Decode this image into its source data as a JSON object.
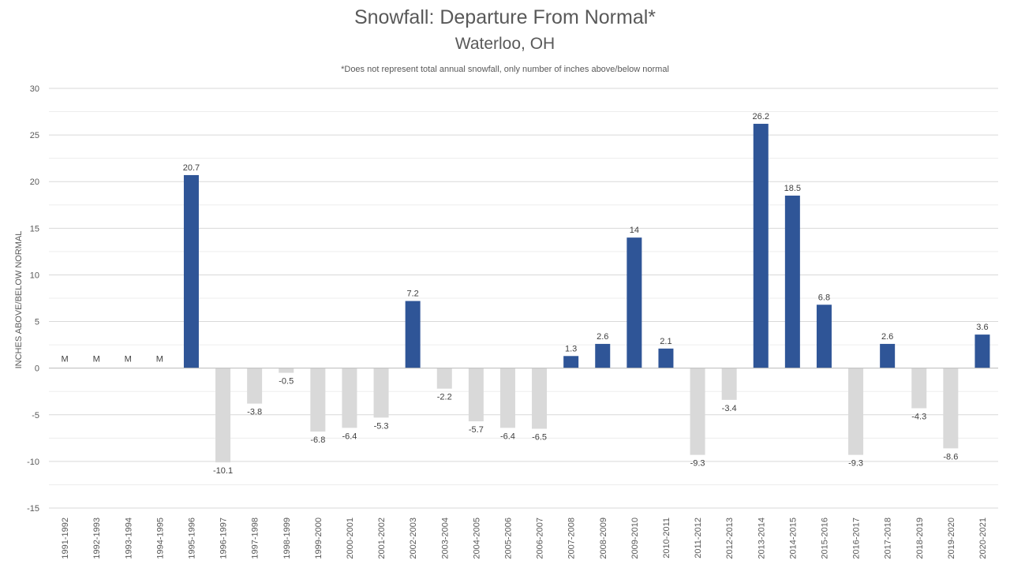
{
  "chart_data": {
    "type": "bar",
    "title": "Snowfall: Departure From Normal*",
    "subtitle": "Waterloo, OH",
    "note": "*Does not represent  total annual snowfall, only number of inches above/below normal",
    "ylabel": "INCHES ABOVE/BELOW NORMAL",
    "xlabel": "",
    "ylim": [
      -15,
      30
    ],
    "yticks": [
      30,
      25,
      20,
      15,
      10,
      5,
      0,
      -5,
      -10,
      -15
    ],
    "grid": true,
    "colors": {
      "positive": "#2F5597",
      "negative": "#D9D9D9"
    },
    "categories": [
      "1991-1992",
      "1992-1993",
      "1993-1994",
      "1994-1995",
      "1995-1996",
      "1996-1997",
      "1997-1998",
      "1998-1999",
      "1999-2000",
      "2000-2001",
      "2001-2002",
      "2002-2003",
      "2003-2004",
      "2004-2005",
      "2005-2006",
      "2006-2007",
      "2007-2008",
      "2008-2009",
      "2009-2010",
      "2010-2011",
      "2011-2012",
      "2012-2013",
      "2013-2014",
      "2014-2015",
      "2015-2016",
      "2016-2017",
      "2017-2018",
      "2018-2019",
      "2019-2020",
      "2020-2021"
    ],
    "values": [
      null,
      null,
      null,
      null,
      20.7,
      -10.1,
      -3.8,
      -0.5,
      -6.8,
      -6.4,
      -5.3,
      7.2,
      -2.2,
      -5.7,
      -6.4,
      -6.5,
      1.3,
      2.6,
      14,
      2.1,
      -9.3,
      -3.4,
      26.2,
      18.5,
      6.8,
      -9.3,
      2.6,
      -4.3,
      -8.6,
      3.6
    ],
    "data_labels": [
      "M",
      "M",
      "M",
      "M",
      "20.7",
      "-10.1",
      "-3.8",
      "-0.5",
      "-6.8",
      "-6.4",
      "-5.3",
      "7.2",
      "-2.2",
      "-5.7",
      "-6.4",
      "-6.5",
      "1.3",
      "2.6",
      "14",
      "2.1",
      "-9.3",
      "-3.4",
      "26.2",
      "18.5",
      "6.8",
      "-9.3",
      "2.6",
      "-4.3",
      "-8.6",
      "3.6"
    ]
  }
}
